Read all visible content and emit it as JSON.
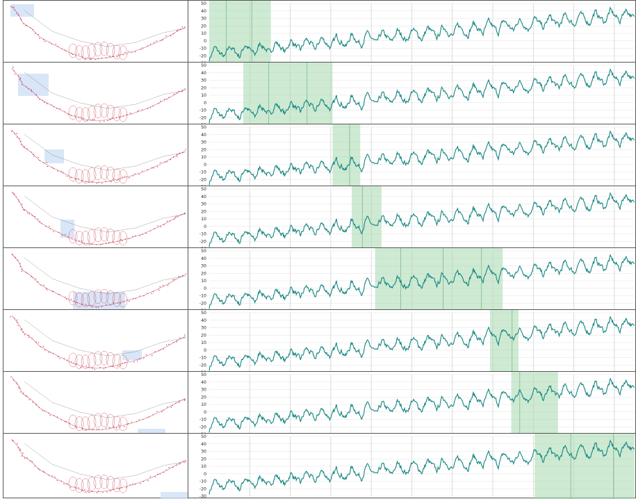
{
  "colors": {
    "series": "#138580",
    "window": "#a6d9ae",
    "window_opacity": 0.55,
    "thumb_highlight": "#cfe0f6",
    "path": "#c4394c",
    "grid": "#cccccc",
    "panel_border": "#555555"
  },
  "chart_data": {
    "type": "line",
    "x_points": 700,
    "ylim": [
      -30,
      50
    ],
    "yticks": [
      "50",
      "40",
      "30",
      "20",
      "10",
      "0",
      "-10",
      "-20",
      "-30"
    ],
    "grid": true,
    "series_trend": {
      "start": -17,
      "end": 36,
      "oscillation_period": 25,
      "oscillation_amplitude": 9,
      "noise": 3
    },
    "panels": [
      {
        "window": [
          0.0,
          0.145
        ],
        "window_splits": [
          0.04,
          0.1
        ]
      },
      {
        "window": [
          0.08,
          0.29
        ],
        "window_splits": [
          0.14,
          0.23
        ]
      },
      {
        "window": [
          0.29,
          0.355
        ],
        "window_splits": [
          0.33
        ]
      },
      {
        "window": [
          0.335,
          0.405
        ],
        "window_splits": [
          0.36
        ]
      },
      {
        "window": [
          0.39,
          0.69
        ],
        "window_splits": [
          0.45,
          0.55,
          0.64
        ]
      },
      {
        "window": [
          0.66,
          0.727
        ],
        "window_splits": [
          0.712
        ]
      },
      {
        "window": [
          0.71,
          0.82
        ],
        "window_splits": [
          0.73
        ]
      },
      {
        "window": [
          0.765,
          1.0
        ],
        "window_splits": [
          0.85,
          0.95
        ]
      }
    ]
  }
}
